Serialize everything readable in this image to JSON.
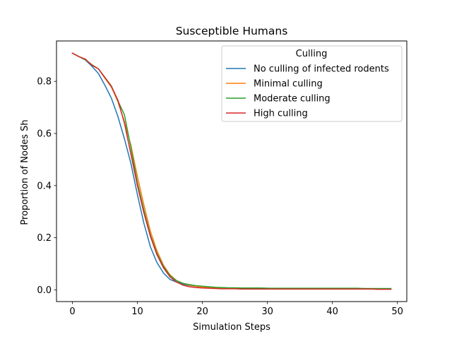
{
  "chart_data": {
    "type": "line",
    "title": "Susceptible Humans",
    "xlabel": "Simulation Steps",
    "ylabel": "Proportion of Nodes Sh",
    "xlim": [
      -2.45,
      51.45
    ],
    "ylim": [
      -0.045,
      0.955
    ],
    "xticks": [
      0,
      10,
      20,
      30,
      40,
      50
    ],
    "yticks": [
      0.0,
      0.2,
      0.4,
      0.6,
      0.8
    ],
    "xtick_labels": [
      "0",
      "10",
      "20",
      "30",
      "40",
      "50"
    ],
    "ytick_labels": [
      "0.0",
      "0.2",
      "0.4",
      "0.6",
      "0.8"
    ],
    "grid": false,
    "legend": {
      "title": "Culling",
      "placement": "top-right"
    },
    "x": [
      0,
      1,
      2,
      3,
      4,
      5,
      6,
      7,
      8,
      9,
      10,
      11,
      12,
      13,
      14,
      15,
      16,
      17,
      18,
      19,
      20,
      21,
      22,
      23,
      24,
      25,
      26,
      27,
      28,
      29,
      30,
      31,
      32,
      33,
      34,
      35,
      36,
      37,
      38,
      39,
      40,
      41,
      42,
      43,
      44,
      45,
      46,
      47,
      48,
      49
    ],
    "series": [
      {
        "name": "No culling of infected rodents",
        "color": "#1f77b4",
        "values": [
          0.908,
          0.895,
          0.882,
          0.858,
          0.83,
          0.785,
          0.735,
          0.665,
          0.58,
          0.485,
          0.365,
          0.255,
          0.165,
          0.105,
          0.065,
          0.04,
          0.03,
          0.022,
          0.017,
          0.014,
          0.012,
          0.01,
          0.009,
          0.008,
          0.007,
          0.007,
          0.006,
          0.006,
          0.006,
          0.006,
          0.006,
          0.005,
          0.005,
          0.005,
          0.005,
          0.005,
          0.005,
          0.005,
          0.005,
          0.005,
          0.005,
          0.005,
          0.005,
          0.005,
          0.004,
          0.004,
          0.004,
          0.004,
          0.004,
          0.004
        ]
      },
      {
        "name": "Minimal culling",
        "color": "#ff7f0e",
        "values": [
          0.908,
          0.895,
          0.885,
          0.862,
          0.848,
          0.812,
          0.778,
          0.722,
          0.645,
          0.555,
          0.435,
          0.325,
          0.225,
          0.15,
          0.095,
          0.058,
          0.036,
          0.025,
          0.018,
          0.014,
          0.011,
          0.009,
          0.008,
          0.007,
          0.006,
          0.006,
          0.005,
          0.005,
          0.005,
          0.005,
          0.005,
          0.005,
          0.005,
          0.005,
          0.005,
          0.005,
          0.005,
          0.005,
          0.005,
          0.005,
          0.005,
          0.005,
          0.005,
          0.005,
          0.005,
          0.004,
          0.004,
          0.004,
          0.004,
          0.004
        ]
      },
      {
        "name": "Moderate culling",
        "color": "#2ca02c",
        "values": [
          0.908,
          0.895,
          0.883,
          0.864,
          0.848,
          0.815,
          0.782,
          0.725,
          0.672,
          0.545,
          0.41,
          0.305,
          0.21,
          0.14,
          0.09,
          0.055,
          0.035,
          0.025,
          0.02,
          0.016,
          0.014,
          0.012,
          0.01,
          0.009,
          0.008,
          0.008,
          0.007,
          0.007,
          0.007,
          0.007,
          0.006,
          0.006,
          0.006,
          0.006,
          0.006,
          0.006,
          0.006,
          0.006,
          0.006,
          0.006,
          0.006,
          0.006,
          0.006,
          0.006,
          0.006,
          0.005,
          0.005,
          0.005,
          0.005,
          0.005
        ]
      },
      {
        "name": "High culling",
        "color": "#d62728",
        "values": [
          0.908,
          0.895,
          0.885,
          0.862,
          0.848,
          0.815,
          0.78,
          0.728,
          0.64,
          0.52,
          0.4,
          0.295,
          0.205,
          0.135,
          0.085,
          0.05,
          0.03,
          0.018,
          0.012,
          0.009,
          0.007,
          0.006,
          0.005,
          0.004,
          0.004,
          0.004,
          0.003,
          0.003,
          0.003,
          0.003,
          0.003,
          0.003,
          0.003,
          0.003,
          0.003,
          0.003,
          0.003,
          0.003,
          0.003,
          0.003,
          0.003,
          0.003,
          0.003,
          0.003,
          0.003,
          0.003,
          0.003,
          0.002,
          0.002,
          0.002
        ]
      }
    ]
  }
}
